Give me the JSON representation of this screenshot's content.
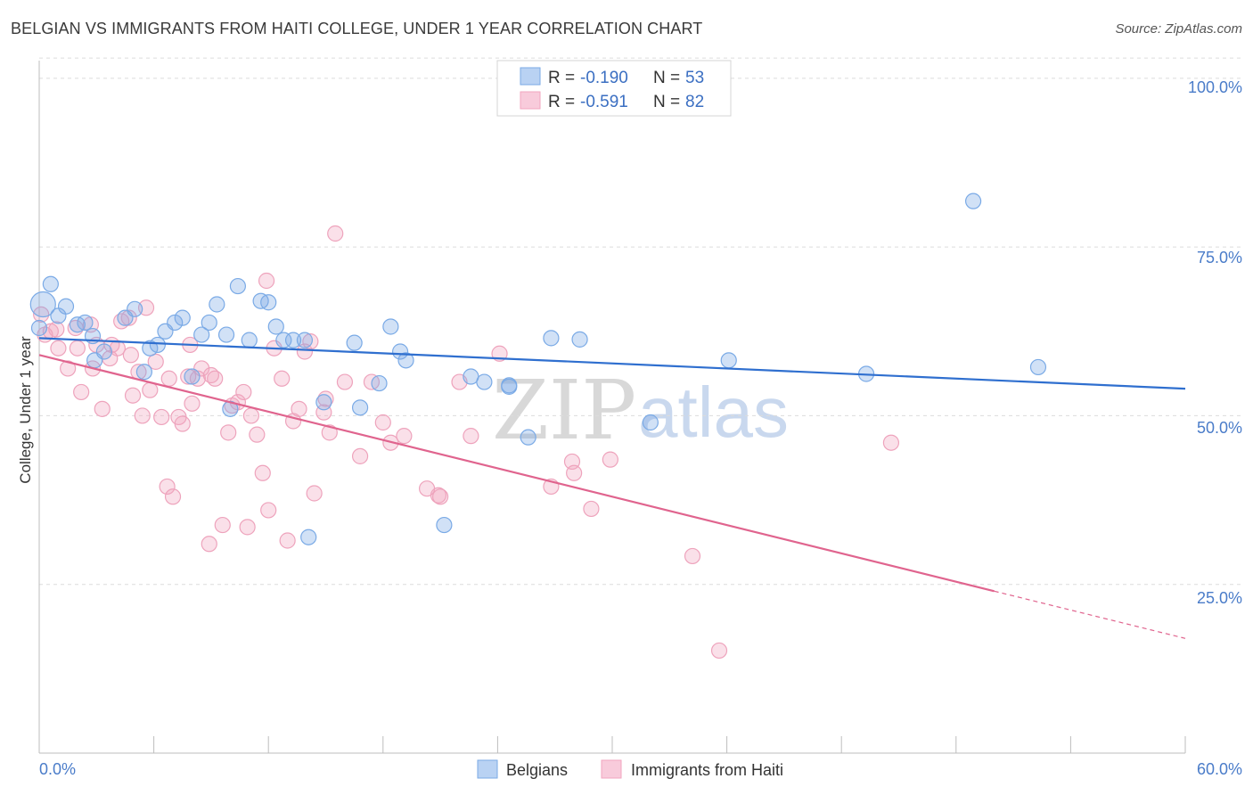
{
  "title": "BELGIAN VS IMMIGRANTS FROM HAITI COLLEGE, UNDER 1 YEAR CORRELATION CHART",
  "source": "Source: ZipAtlas.com",
  "watermark": {
    "zip": "ZIP",
    "atlas": "atlas"
  },
  "colors": {
    "blue": "#7aaae6",
    "blue_line": "#2f6fcf",
    "pink": "#f2a6bf",
    "pink_line": "#e0648e",
    "tick_text": "#4a7cc9"
  },
  "legend": {
    "r_label": "R =",
    "n_label": "N =",
    "rows": [
      {
        "r": "-0.190",
        "n": "53"
      },
      {
        "r": "-0.591",
        "n": "82"
      }
    ]
  },
  "bottom_legend": {
    "belgians": "Belgians",
    "haiti": "Immigrants from Haiti"
  },
  "chart_data": {
    "type": "scatter",
    "title": "BELGIAN VS IMMIGRANTS FROM HAITI COLLEGE, UNDER 1 YEAR CORRELATION CHART",
    "xlabel": "",
    "ylabel": "College, Under 1 year",
    "xlim": [
      0,
      60
    ],
    "ylim": [
      0,
      105
    ],
    "x_tick_labels": [
      "0.0%",
      "60.0%"
    ],
    "y_ticks": [
      25,
      50,
      75,
      100
    ],
    "y_tick_labels": [
      "25.0%",
      "50.0%",
      "75.0%",
      "100.0%"
    ],
    "grid": "horizontal dashed",
    "legend_position": "top-center",
    "series": [
      {
        "name": "Belgians",
        "color": "#7aaae6",
        "trend": {
          "x": [
            0,
            60
          ],
          "y": [
            61.5,
            54.0
          ],
          "dashed_from": null
        },
        "points": [
          [
            0.2,
            66.5
          ],
          [
            0.6,
            69.5
          ],
          [
            1.0,
            64.8
          ],
          [
            1.4,
            66.2
          ],
          [
            2.0,
            63.5
          ],
          [
            2.4,
            63.8
          ],
          [
            2.8,
            61.8
          ],
          [
            2.9,
            58.2
          ],
          [
            3.4,
            59.5
          ],
          [
            4.5,
            64.5
          ],
          [
            5.0,
            65.8
          ],
          [
            5.5,
            56.5
          ],
          [
            5.8,
            60.0
          ],
          [
            6.2,
            60.5
          ],
          [
            6.6,
            62.5
          ],
          [
            7.1,
            63.8
          ],
          [
            7.5,
            64.5
          ],
          [
            8.0,
            55.8
          ],
          [
            8.5,
            62.0
          ],
          [
            8.9,
            63.8
          ],
          [
            9.3,
            66.5
          ],
          [
            9.8,
            62.0
          ],
          [
            10.0,
            51.0
          ],
          [
            10.4,
            69.2
          ],
          [
            11.0,
            61.2
          ],
          [
            11.6,
            67.0
          ],
          [
            12.0,
            66.8
          ],
          [
            12.4,
            63.2
          ],
          [
            12.8,
            61.2
          ],
          [
            13.3,
            61.2
          ],
          [
            13.9,
            61.2
          ],
          [
            14.1,
            32.0
          ],
          [
            14.9,
            52.0
          ],
          [
            16.5,
            60.8
          ],
          [
            16.8,
            51.2
          ],
          [
            17.8,
            54.8
          ],
          [
            18.4,
            63.2
          ],
          [
            18.9,
            59.5
          ],
          [
            19.2,
            58.2
          ],
          [
            21.2,
            33.8
          ],
          [
            22.6,
            55.8
          ],
          [
            23.3,
            55.0
          ],
          [
            24.6,
            54.5
          ],
          [
            25.6,
            46.8
          ],
          [
            26.8,
            61.5
          ],
          [
            28.3,
            61.3
          ],
          [
            32.0,
            49.0
          ],
          [
            36.1,
            58.2
          ],
          [
            43.3,
            56.2
          ],
          [
            48.9,
            81.8
          ],
          [
            52.3,
            57.2
          ],
          [
            0.0,
            63.0
          ],
          [
            24.6,
            54.3
          ]
        ]
      },
      {
        "name": "Immigrants from Haiti",
        "color": "#f2a6bf",
        "trend": {
          "x": [
            0,
            50
          ],
          "y": [
            59.0,
            24.0
          ],
          "dashed_to": {
            "x": 60,
            "y": 17.0
          }
        },
        "points": [
          [
            0.1,
            65.0
          ],
          [
            0.6,
            62.5
          ],
          [
            0.9,
            62.8
          ],
          [
            1.0,
            60.0
          ],
          [
            1.5,
            57.0
          ],
          [
            1.9,
            63.0
          ],
          [
            2.0,
            60.0
          ],
          [
            2.2,
            53.5
          ],
          [
            2.7,
            63.5
          ],
          [
            2.8,
            57.0
          ],
          [
            3.3,
            51.0
          ],
          [
            3.7,
            58.5
          ],
          [
            3.8,
            60.5
          ],
          [
            4.1,
            60.0
          ],
          [
            4.3,
            64.0
          ],
          [
            4.7,
            64.5
          ],
          [
            4.8,
            59.0
          ],
          [
            4.9,
            53.0
          ],
          [
            5.2,
            56.5
          ],
          [
            5.4,
            50.0
          ],
          [
            5.6,
            66.0
          ],
          [
            5.8,
            53.8
          ],
          [
            6.1,
            58.0
          ],
          [
            6.4,
            49.8
          ],
          [
            6.7,
            39.5
          ],
          [
            6.8,
            55.5
          ],
          [
            7.0,
            38.0
          ],
          [
            7.3,
            49.8
          ],
          [
            7.5,
            48.8
          ],
          [
            7.8,
            55.8
          ],
          [
            7.9,
            60.5
          ],
          [
            8.0,
            51.8
          ],
          [
            8.3,
            55.5
          ],
          [
            8.5,
            57.0
          ],
          [
            8.9,
            31.0
          ],
          [
            9.2,
            55.5
          ],
          [
            9.6,
            33.8
          ],
          [
            9.9,
            47.5
          ],
          [
            10.1,
            51.5
          ],
          [
            10.4,
            52.0
          ],
          [
            10.7,
            53.5
          ],
          [
            10.9,
            33.5
          ],
          [
            11.1,
            50.0
          ],
          [
            11.4,
            47.2
          ],
          [
            11.7,
            41.5
          ],
          [
            11.9,
            70.0
          ],
          [
            12.3,
            60.0
          ],
          [
            12.7,
            55.5
          ],
          [
            13.0,
            31.5
          ],
          [
            13.3,
            49.2
          ],
          [
            13.6,
            51.0
          ],
          [
            13.9,
            59.5
          ],
          [
            14.2,
            61.0
          ],
          [
            14.4,
            38.5
          ],
          [
            14.9,
            50.5
          ],
          [
            15.2,
            47.5
          ],
          [
            15.5,
            77.0
          ],
          [
            16.0,
            55.0
          ],
          [
            16.8,
            44.0
          ],
          [
            17.4,
            55.0
          ],
          [
            18.4,
            46.0
          ],
          [
            19.1,
            47.0
          ],
          [
            20.3,
            39.2
          ],
          [
            20.9,
            38.2
          ],
          [
            21.0,
            38.0
          ],
          [
            22.6,
            47.0
          ],
          [
            24.1,
            59.2
          ],
          [
            26.8,
            39.5
          ],
          [
            27.9,
            43.2
          ],
          [
            28.0,
            41.5
          ],
          [
            28.9,
            36.2
          ],
          [
            29.9,
            43.5
          ],
          [
            34.2,
            29.2
          ],
          [
            35.6,
            15.2
          ],
          [
            44.6,
            46.0
          ],
          [
            0.3,
            62.0
          ],
          [
            3.0,
            60.5
          ],
          [
            9.0,
            56.0
          ],
          [
            12.0,
            36.0
          ],
          [
            15.0,
            52.5
          ],
          [
            18.0,
            49.0
          ],
          [
            22.0,
            55.0
          ]
        ]
      }
    ]
  }
}
